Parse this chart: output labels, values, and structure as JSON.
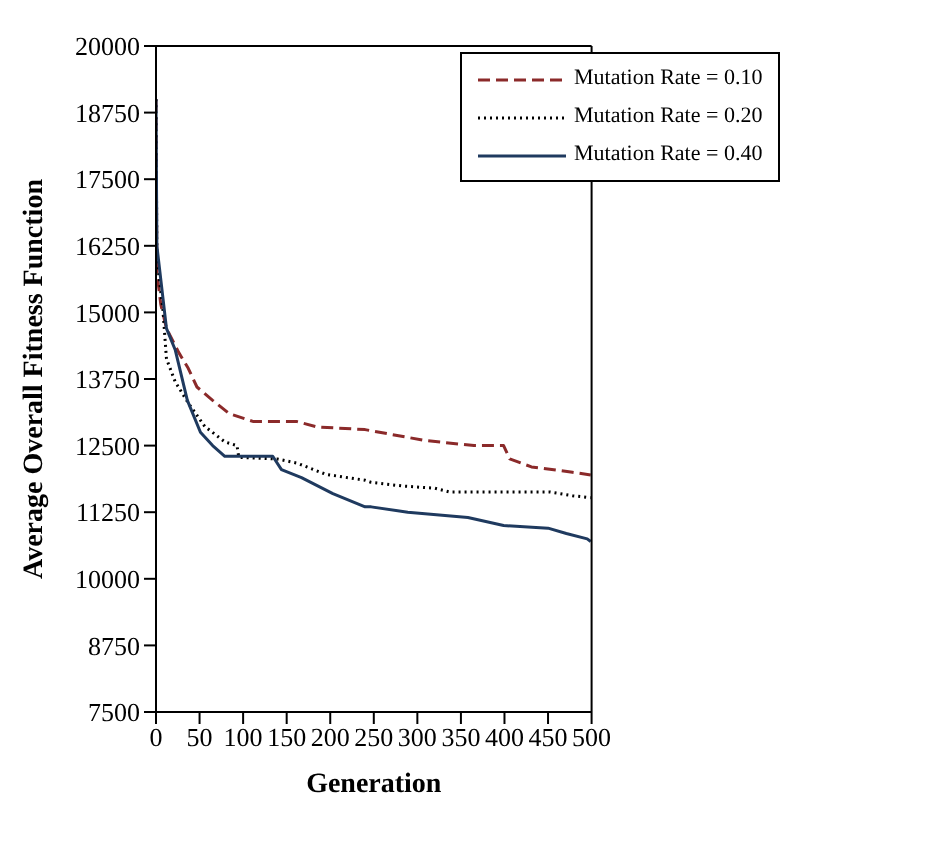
{
  "chart_data": {
    "type": "line",
    "xlabel": "Generation",
    "ylabel": "Average Overall Fitness Function",
    "xlim": [
      0,
      500
    ],
    "xticks": [
      0,
      50,
      100,
      150,
      200,
      250,
      300,
      350,
      400,
      450,
      500
    ],
    "ylim": [
      7500,
      20000
    ],
    "yticks": [
      7500,
      8750,
      10000,
      11250,
      12500,
      13750,
      15000,
      16250,
      17500,
      18750,
      20000
    ],
    "grid": false,
    "legend": "top right",
    "marker": "none",
    "series": [
      {
        "name": "Mutation Rate = 0.10",
        "color": "#8b2a2a",
        "line_style": "dashed",
        "x": [
          0,
          1,
          5.5,
          12,
          26,
          37,
          47,
          65,
          84,
          112,
          162,
          185,
          240,
          307,
          365,
          399,
          406,
          431,
          478,
          499
        ],
        "values": [
          19000,
          15750,
          15150,
          14700,
          14250,
          13950,
          13600,
          13350,
          13100,
          12950,
          12950,
          12850,
          12800,
          12600,
          12500,
          12500,
          12250,
          12100,
          12000,
          11950
        ]
      },
      {
        "name": "Mutation Rate = 0.20",
        "color": "#000000",
        "line_style": "dotted",
        "x": [
          0,
          1,
          8,
          12,
          22,
          37,
          56,
          79,
          93,
          95,
          139,
          162,
          195,
          240,
          247,
          284,
          320,
          337,
          452,
          478,
          499
        ],
        "values": [
          19000,
          16000,
          15040,
          14130,
          13700,
          13300,
          12860,
          12570,
          12500,
          12280,
          12250,
          12170,
          11960,
          11850,
          11810,
          11740,
          11700,
          11630,
          11630,
          11560,
          11520
        ]
      },
      {
        "name": "Mutation Rate = 0.40",
        "color": "#1f3a5f",
        "line_style": "solid",
        "x": [
          0,
          1,
          12,
          22,
          36,
          51,
          65,
          79,
          134,
          144,
          167,
          203,
          240,
          247,
          289,
          358,
          399,
          450,
          471,
          495,
          499
        ],
        "values": [
          19000,
          16250,
          14700,
          14300,
          13350,
          12750,
          12500,
          12300,
          12300,
          12050,
          11900,
          11600,
          11350,
          11350,
          11250,
          11150,
          11000,
          10950,
          10850,
          10750,
          10700
        ]
      }
    ]
  }
}
